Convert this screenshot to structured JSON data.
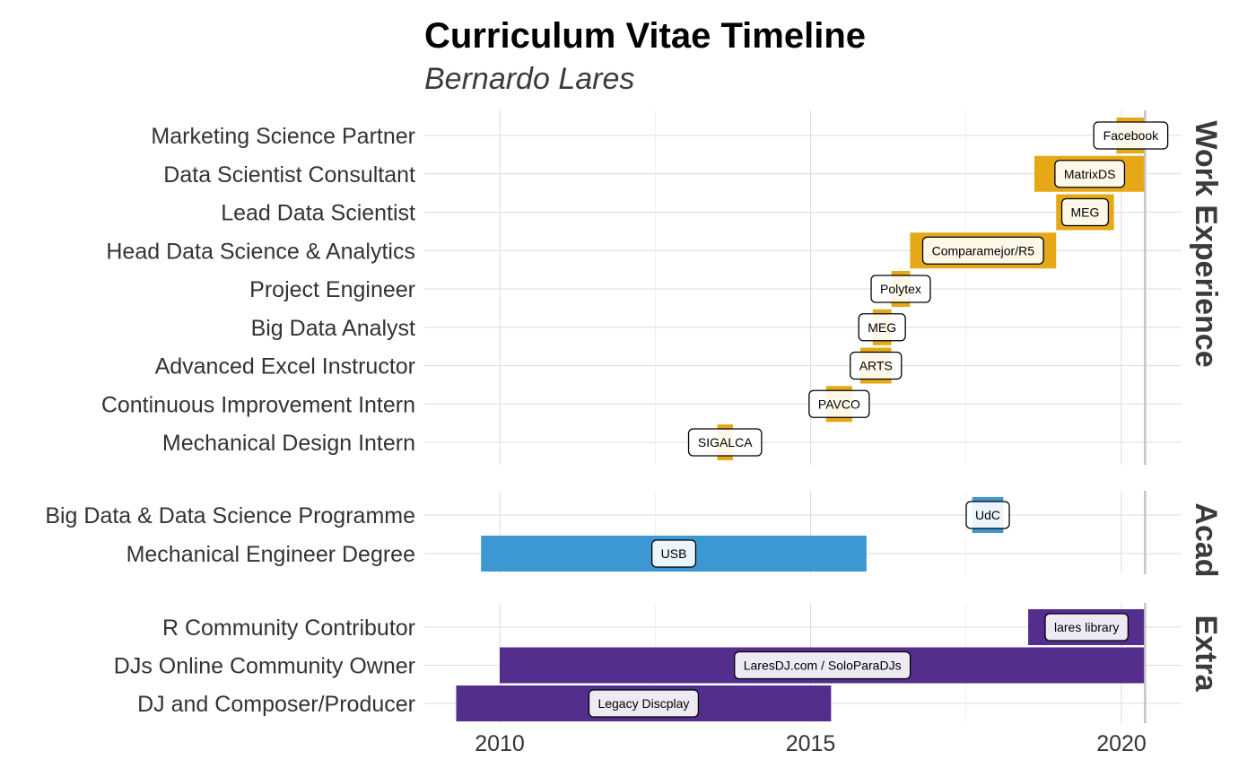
{
  "chart_data": {
    "type": "timeline",
    "title": "Curriculum Vitae Timeline",
    "subtitle": "Bernardo Lares",
    "x_ticks": [
      "2010",
      "2015",
      "2020"
    ],
    "x_range": [
      2009.6,
      2021.9
    ],
    "today": 2020.38,
    "panels": [
      {
        "name": "Work Experience",
        "color": "#e6a817",
        "items": [
          {
            "role": "Marketing Science Partner",
            "place": "Facebook",
            "start": 2019.92,
            "end": 2020.38
          },
          {
            "role": "Data Scientist Consultant",
            "place": "MatrixDS",
            "start": 2018.6,
            "end": 2020.38
          },
          {
            "role": "Lead Data Scientist",
            "place": "MEG",
            "start": 2018.95,
            "end": 2019.88
          },
          {
            "role": "Head Data Science & Analytics",
            "place": "Comparamejor/R5",
            "start": 2016.6,
            "end": 2018.95
          },
          {
            "role": "Project Engineer",
            "place": "Polytex",
            "start": 2016.3,
            "end": 2016.6
          },
          {
            "role": "Big Data Analyst",
            "place": "MEG",
            "start": 2016.0,
            "end": 2016.3
          },
          {
            "role": "Advanced Excel Instructor",
            "place": "ARTS",
            "start": 2015.8,
            "end": 2016.3
          },
          {
            "role": "Continuous Improvement Intern",
            "place": "PAVCO",
            "start": 2015.25,
            "end": 2015.67
          },
          {
            "role": "Mechanical Design Intern",
            "place": "SIGALCA",
            "start": 2013.5,
            "end": 2013.75
          }
        ]
      },
      {
        "name": "Acad",
        "color": "#3d97d3",
        "items": [
          {
            "role": "Big Data & Data Science Programme",
            "place": "UdC",
            "start": 2017.6,
            "end": 2018.1
          },
          {
            "role": "Mechanical Engineer Degree",
            "place": "USB",
            "start": 2009.7,
            "end": 2015.9
          }
        ]
      },
      {
        "name": "Extra",
        "color": "#532e8c",
        "items": [
          {
            "role": "R Community Contributor",
            "place": "lares library",
            "start": 2018.5,
            "end": 2020.38
          },
          {
            "role": "DJs Online Community Owner",
            "place": "LaresDJ.com / SoloParaDJs",
            "start": 2010.0,
            "end": 2020.38
          },
          {
            "role": "DJ and Composer/Producer",
            "place": "Legacy Discplay",
            "start": 2009.3,
            "end": 2015.33
          }
        ]
      }
    ],
    "grid": true,
    "legend": "none"
  }
}
